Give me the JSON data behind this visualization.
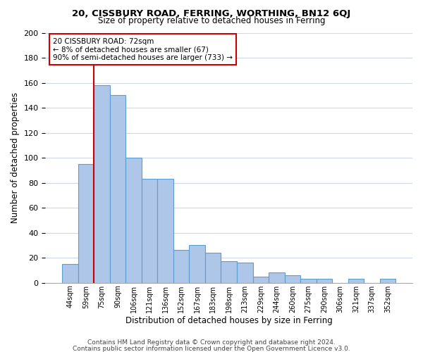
{
  "title1": "20, CISSBURY ROAD, FERRING, WORTHING, BN12 6QJ",
  "title2": "Size of property relative to detached houses in Ferring",
  "xlabel": "Distribution of detached houses by size in Ferring",
  "ylabel": "Number of detached properties",
  "bar_labels": [
    "44sqm",
    "59sqm",
    "75sqm",
    "90sqm",
    "106sqm",
    "121sqm",
    "136sqm",
    "152sqm",
    "167sqm",
    "183sqm",
    "198sqm",
    "213sqm",
    "229sqm",
    "244sqm",
    "260sqm",
    "275sqm",
    "290sqm",
    "306sqm",
    "321sqm",
    "337sqm",
    "352sqm"
  ],
  "bar_values": [
    15,
    95,
    158,
    150,
    100,
    83,
    83,
    26,
    30,
    24,
    17,
    16,
    5,
    8,
    6,
    3,
    3,
    0,
    3,
    0,
    3
  ],
  "bar_color": "#aec6e8",
  "bar_edge_color": "#5a9fd4",
  "vline_index": 2,
  "vline_color": "#cc0000",
  "annotation_line1": "20 CISSBURY ROAD: 72sqm",
  "annotation_line2": "← 8% of detached houses are smaller (67)",
  "annotation_line3": "90% of semi-detached houses are larger (733) →",
  "box_edge_color": "#cc0000",
  "ylim": [
    0,
    200
  ],
  "yticks": [
    0,
    20,
    40,
    60,
    80,
    100,
    120,
    140,
    160,
    180,
    200
  ],
  "footer1": "Contains HM Land Registry data © Crown copyright and database right 2024.",
  "footer2": "Contains public sector information licensed under the Open Government Licence v3.0.",
  "background_color": "#ffffff",
  "grid_color": "#d0d8e8"
}
